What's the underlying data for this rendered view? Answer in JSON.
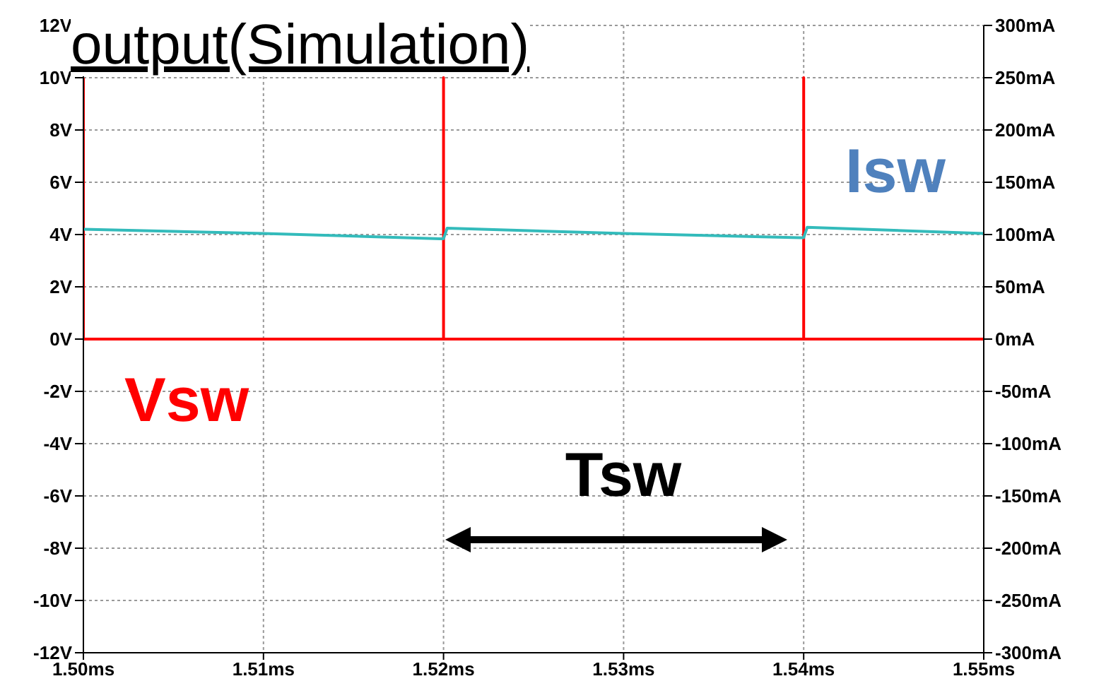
{
  "chart_data": {
    "type": "line",
    "title": "output(Simulation)",
    "xlim": [
      1.5,
      1.55
    ],
    "xticks": [
      {
        "value": 1.5,
        "label": "1.50ms"
      },
      {
        "value": 1.51,
        "label": "1.51ms"
      },
      {
        "value": 1.52,
        "label": "1.52ms"
      },
      {
        "value": 1.53,
        "label": "1.53ms"
      },
      {
        "value": 1.54,
        "label": "1.54ms"
      },
      {
        "value": 1.55,
        "label": "1.55ms"
      }
    ],
    "ylim": [
      -12,
      12
    ],
    "yticks": [
      {
        "value": -12,
        "label": "-12V"
      },
      {
        "value": -10,
        "label": "-10V"
      },
      {
        "value": -8,
        "label": "-8V"
      },
      {
        "value": -6,
        "label": "-6V"
      },
      {
        "value": -4,
        "label": "-4V"
      },
      {
        "value": -2,
        "label": "-2V"
      },
      {
        "value": 0,
        "label": "0V"
      },
      {
        "value": 2,
        "label": "2V"
      },
      {
        "value": 4,
        "label": "4V"
      },
      {
        "value": 6,
        "label": "6V"
      },
      {
        "value": 8,
        "label": "8V"
      },
      {
        "value": 10,
        "label": "10V"
      },
      {
        "value": 12,
        "label": "12V"
      }
    ],
    "y2lim": [
      -300,
      300
    ],
    "y2ticks": [
      {
        "value": -300,
        "label": "-300mA"
      },
      {
        "value": -250,
        "label": "-250mA"
      },
      {
        "value": -200,
        "label": "-200mA"
      },
      {
        "value": -150,
        "label": "-150mA"
      },
      {
        "value": -100,
        "label": "-100mA"
      },
      {
        "value": -50,
        "label": "-50mA"
      },
      {
        "value": 0,
        "label": "0mA"
      },
      {
        "value": 50,
        "label": "50mA"
      },
      {
        "value": 100,
        "label": "100mA"
      },
      {
        "value": 150,
        "label": "150mA"
      },
      {
        "value": 200,
        "label": "200mA"
      },
      {
        "value": 250,
        "label": "250mA"
      },
      {
        "value": 300,
        "label": "300mA"
      }
    ],
    "grid": true,
    "legend": false,
    "marker": "none",
    "series": [
      {
        "name": "Vsw",
        "color": "#ff0000",
        "x": [
          1.5,
          1.5,
          1.52,
          1.52,
          1.52,
          1.54,
          1.54,
          1.54,
          1.55
        ],
        "values": [
          10,
          0,
          0,
          10,
          0,
          0,
          10,
          0,
          0
        ]
      },
      {
        "name": "Isw",
        "color": "#33bbbb",
        "axis": "y2",
        "x": [
          1.5,
          1.51,
          1.5198,
          1.52,
          1.5202,
          1.53,
          1.5398,
          1.54,
          1.5402,
          1.55
        ],
        "values": [
          105,
          101,
          96,
          96,
          106,
          101,
          97,
          97,
          107,
          101
        ]
      }
    ],
    "annotations": [
      "Tsw"
    ]
  }
}
